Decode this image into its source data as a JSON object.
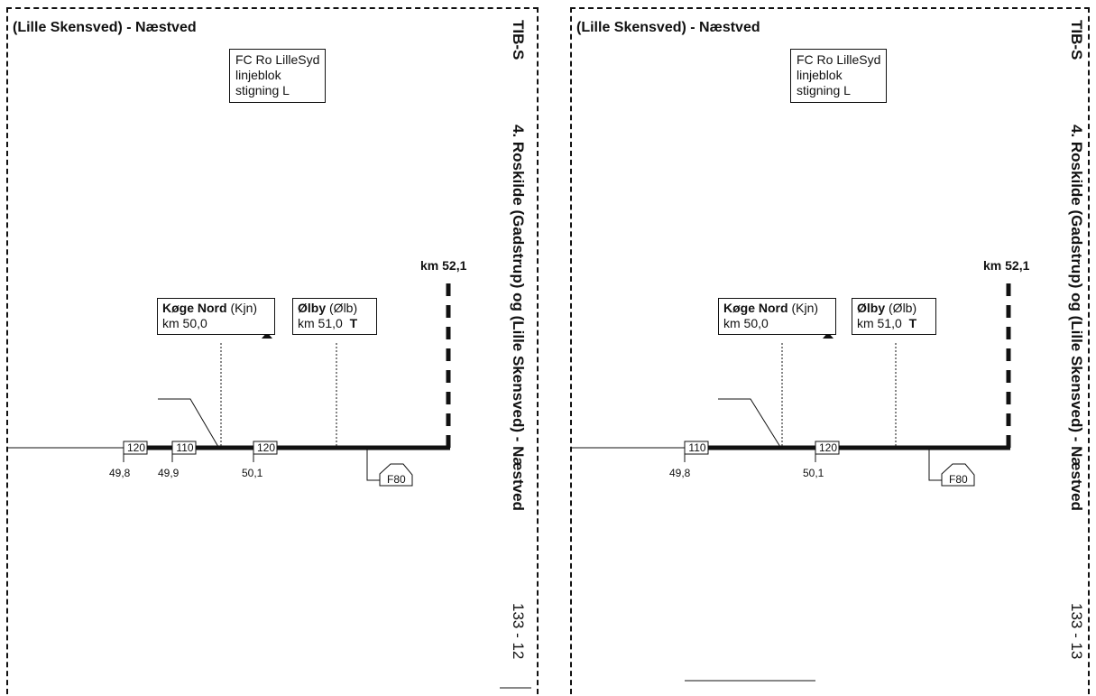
{
  "pages": {
    "left": {
      "route_title": "(Lille Skensved) - Næstved",
      "infobox_lines": [
        "FC Ro LilleSyd",
        "linjeblok",
        "stigning L"
      ],
      "header_code": "TIB-S",
      "section_title": "4. Roskilde (Gadstrup) og (Lille Skensved) - Næstved",
      "page_number": "133 - 12",
      "end_km": "km 52,1",
      "stations": [
        {
          "name": "Køge Nord",
          "code": "(Kjn)",
          "km": "km 50,0",
          "symbol": "hourglass"
        },
        {
          "name": "Ølby",
          "code": "(Ølb)",
          "km": "km 51,0",
          "symbol_text": "T"
        }
      ],
      "speed_signs": [
        "120",
        "110",
        "120"
      ],
      "km_ticks": [
        "49,8",
        "49,9",
        "50,1"
      ],
      "f_sign": "F80"
    },
    "right": {
      "route_title": "(Lille Skensved) - Næstved",
      "infobox_lines": [
        "FC Ro LilleSyd",
        "linjeblok",
        "stigning L"
      ],
      "header_code": "TIB-S",
      "section_title": "4. Roskilde (Gadstrup) og (Lille Skensved) - Næstved",
      "page_number": "133 - 13",
      "end_km": "km 52,1",
      "stations": [
        {
          "name": "Køge Nord",
          "code": "(Kjn)",
          "km": "km 50,0",
          "symbol": "hourglass"
        },
        {
          "name": "Ølby",
          "code": "(Ølb)",
          "km": "km 51,0",
          "symbol_text": "T"
        }
      ],
      "speed_signs": [
        "110",
        "120"
      ],
      "km_ticks": [
        "49,8",
        "50,1"
      ],
      "f_sign": "F80"
    }
  }
}
